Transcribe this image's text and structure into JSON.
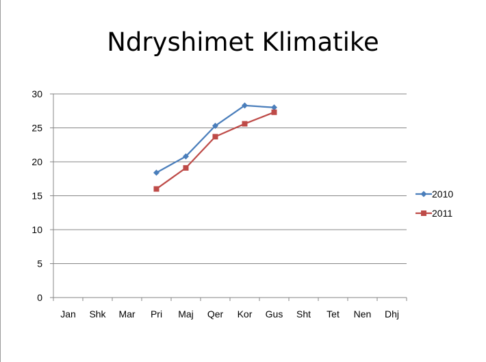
{
  "chart_data": {
    "type": "line",
    "title": "Ndryshimet Klimatike",
    "categories": [
      "Jan",
      "Shk",
      "Mar",
      "Pri",
      "Maj",
      "Qer",
      "Kor",
      "Gus",
      "Sht",
      "Tet",
      "Nen",
      "Dhj"
    ],
    "ylim": [
      0,
      30
    ],
    "yticks": [
      0,
      5,
      10,
      15,
      20,
      25,
      30
    ],
    "yticks_labels": [
      "0",
      "5",
      "10",
      "15",
      "20",
      "25",
      "30"
    ],
    "grid": true,
    "legend": "right",
    "series": [
      {
        "name": "2010",
        "color": "#4a7ebb",
        "marker": "diamond",
        "values": [
          null,
          null,
          null,
          18.4,
          20.8,
          25.3,
          28.3,
          28.0,
          null,
          null,
          null,
          null
        ]
      },
      {
        "name": "2011",
        "color": "#be4b48",
        "marker": "square",
        "values": [
          null,
          null,
          null,
          16.0,
          19.1,
          23.7,
          25.6,
          27.3,
          null,
          null,
          null,
          null
        ]
      }
    ]
  }
}
